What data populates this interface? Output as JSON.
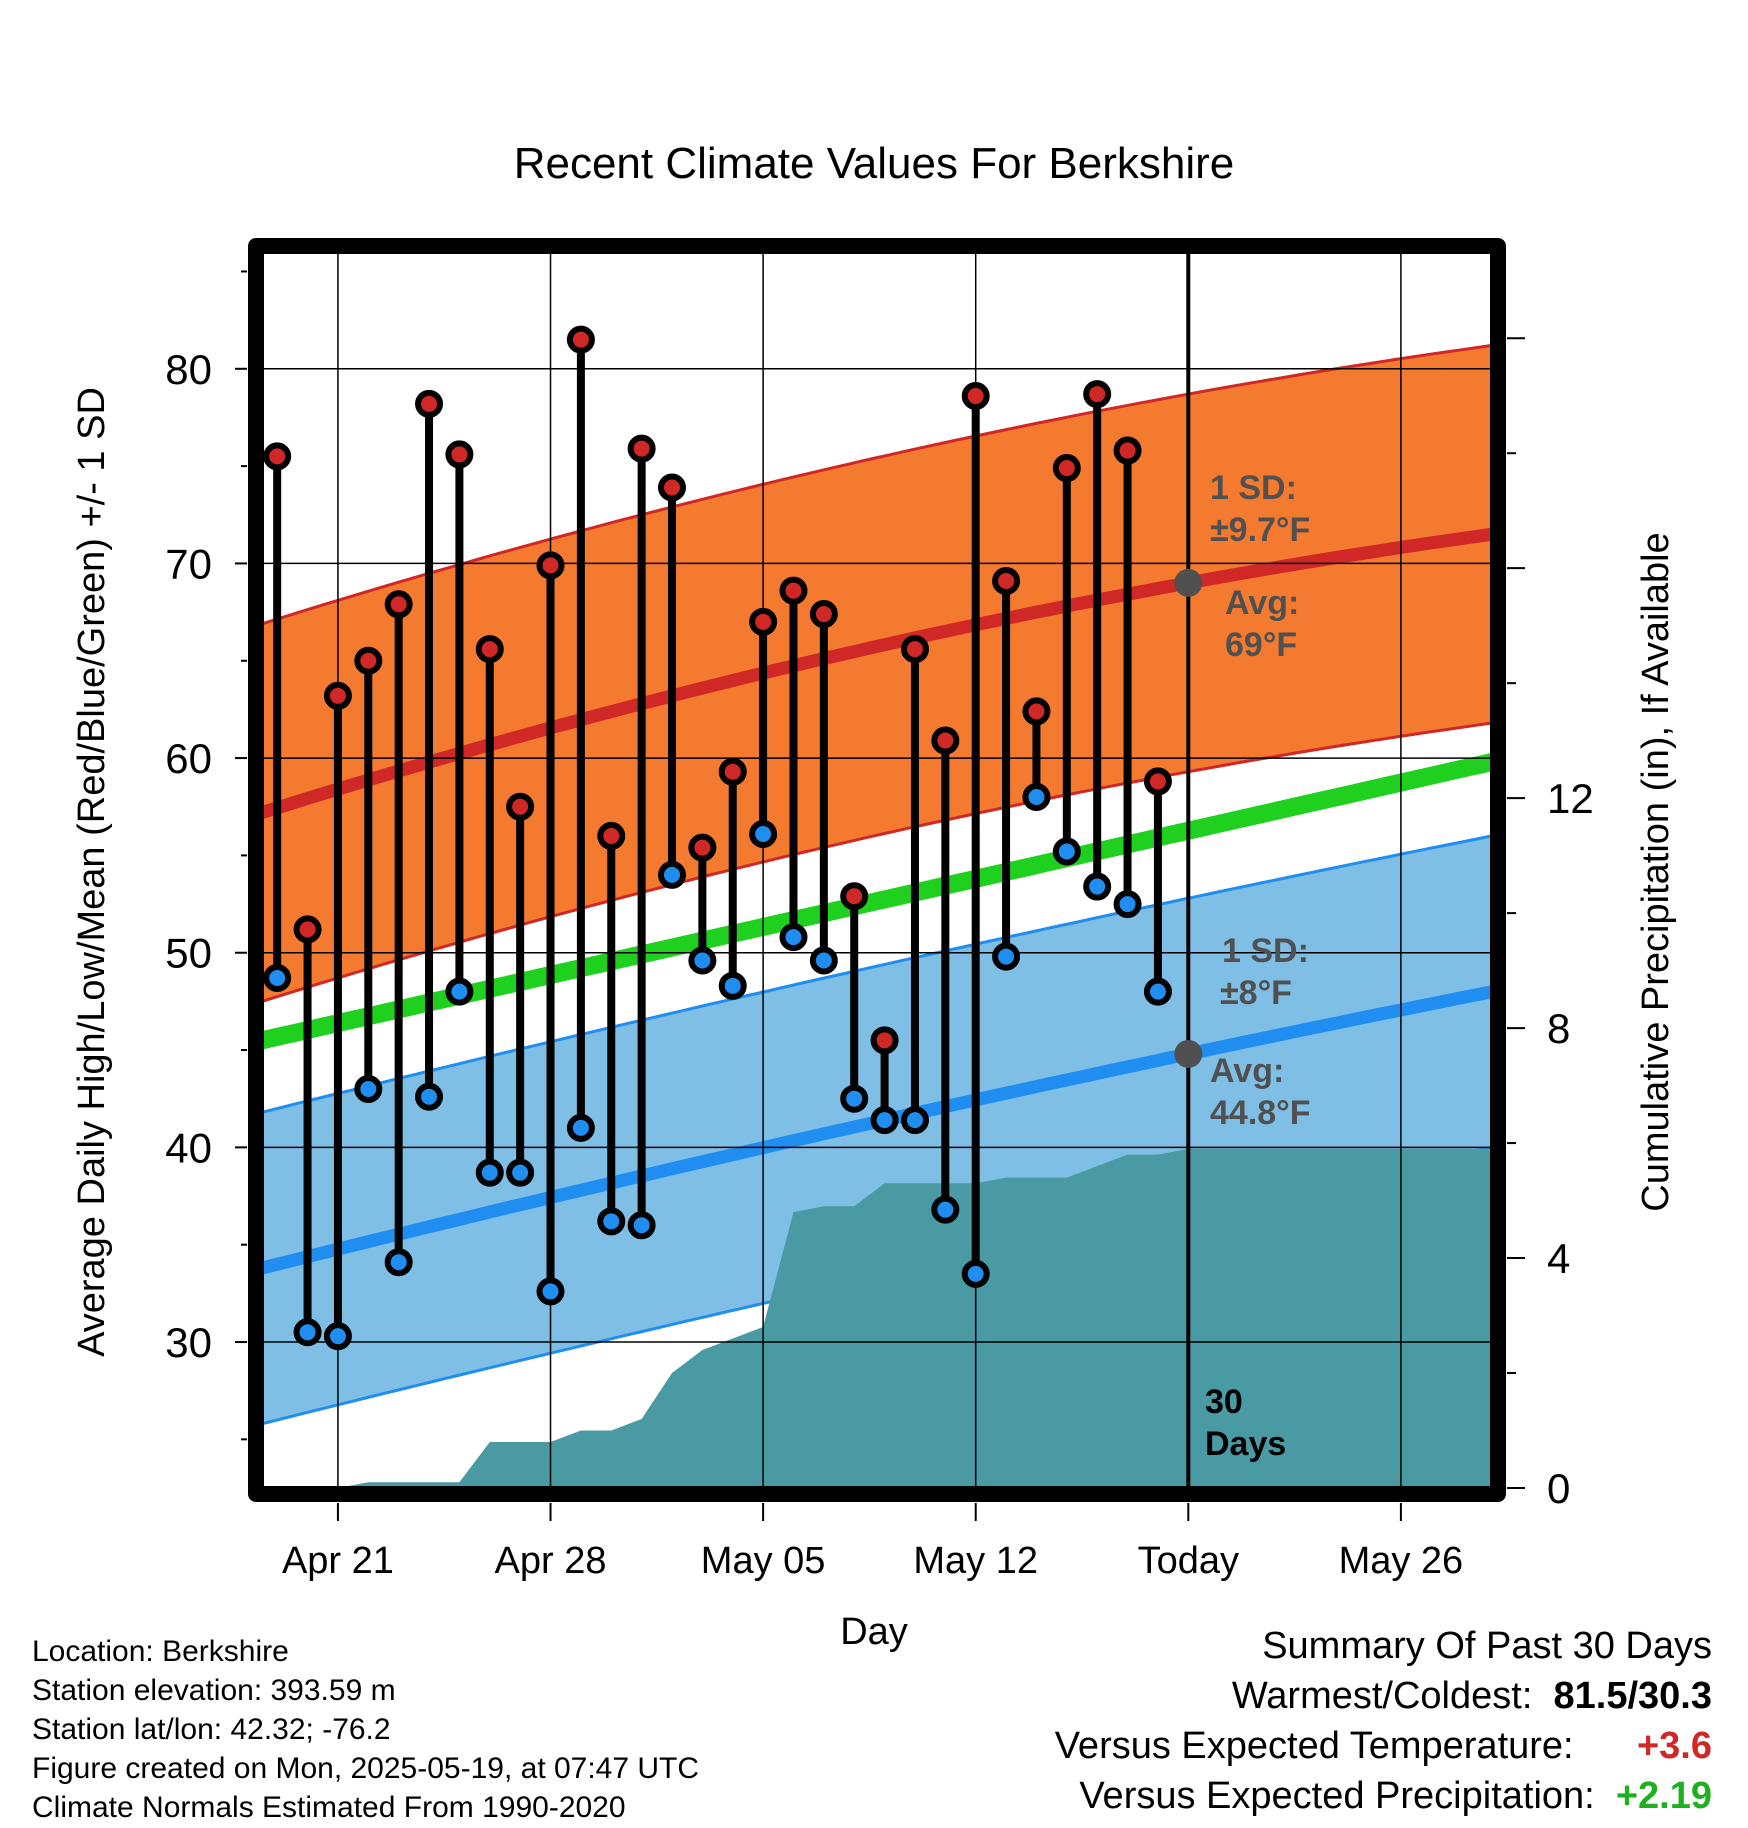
{
  "chart_data": {
    "type": "line",
    "title": "Recent Climate Values For Berkshire",
    "xlabel": "Day",
    "ylabel": "Average Daily High/Low/Mean (Red/Blue/Green) +/- 1 SD",
    "y2label": "Cumulative Precipitation (in), If Available",
    "ylim": [
      22.5,
      86
    ],
    "y2lim": [
      0,
      21.5
    ],
    "x_tick_labels": [
      "Apr 21",
      "Apr 28",
      "May 05",
      "May 12",
      "Today",
      "May 26"
    ],
    "y_ticks": [
      30,
      40,
      50,
      60,
      70,
      80
    ],
    "y2_ticks": [
      0,
      4,
      8,
      12
    ],
    "day_range": [
      -30.5,
      10
    ],
    "x_tick_days": [
      -28,
      -21,
      -14,
      -7,
      0,
      7
    ],
    "highs": [
      75.5,
      51.2,
      63.2,
      65.0,
      67.9,
      78.2,
      75.6,
      65.6,
      57.5,
      69.9,
      81.5,
      56.0,
      75.9,
      73.9,
      55.4,
      59.3,
      67.0,
      68.6,
      67.4,
      52.9,
      45.5,
      65.6,
      60.9,
      78.6,
      69.1,
      62.4,
      74.9,
      78.7,
      75.8,
      58.8
    ],
    "lows": [
      48.7,
      30.5,
      30.3,
      43.0,
      34.1,
      42.6,
      48.0,
      38.7,
      38.7,
      32.6,
      41.0,
      36.2,
      36.0,
      54.0,
      49.6,
      48.3,
      56.1,
      50.8,
      49.6,
      42.5,
      41.4,
      41.4,
      36.8,
      33.5,
      49.8,
      58.0,
      55.2,
      53.4,
      52.5,
      48.0
    ],
    "normal_high": {
      "start": 57.2,
      "today": 69.0,
      "end": 71.5,
      "sd": 9.7
    },
    "normal_low": {
      "start": 33.8,
      "today": 44.8,
      "end": 48.0,
      "sd": 8.0
    },
    "normal_mean": {
      "start": 45.5,
      "end": 59.8
    },
    "precip_cumulative": [
      0,
      0,
      0,
      0.1,
      0.1,
      0.1,
      0.1,
      0.8,
      0.8,
      0.8,
      1.0,
      1.0,
      1.2,
      2.0,
      2.4,
      2.6,
      2.8,
      4.8,
      4.9,
      4.9,
      5.3,
      5.3,
      5.3,
      5.3,
      5.4,
      5.4,
      5.4,
      5.6,
      5.8,
      5.8,
      5.9
    ],
    "annotations": {
      "high_sd": [
        "1 SD:",
        "±9.7°F"
      ],
      "high_avg": [
        "Avg:",
        "69°F"
      ],
      "low_sd": [
        "1 SD:",
        "±8°F"
      ],
      "low_avg": [
        "Avg:",
        "44.8°F"
      ],
      "window": [
        "30",
        "Days"
      ]
    },
    "colors": {
      "high_band": "#f47a2f",
      "high_line": "#d02727",
      "low_band": "#7fbfe6",
      "low_line": "#1f8ef0",
      "mean_line": "#1fd01f",
      "precip": "#4a9aa3",
      "high_dot": "#d02727",
      "low_dot": "#1f8ef0",
      "annotation": "#505050"
    },
    "grid": true
  },
  "info": {
    "location": "Location: Berkshire",
    "elevation": "Station elevation: 393.59 m",
    "latlon": "Station lat/lon: 42.32; -76.2",
    "created": "Figure created on Mon, 2025-05-19, at 07:47 UTC",
    "normals": "Climate Normals Estimated From 1990-2020"
  },
  "summary": {
    "title": "Summary Of Past 30 Days",
    "warm_label": "Warmest/Coldest:",
    "warm_value": "81.5/30.3",
    "temp_label": "Versus Expected Temperature:",
    "temp_value": "+3.6",
    "temp_color": "#d02727",
    "precip_label": "Versus Expected Precipitation:",
    "precip_value": "+2.19",
    "precip_color": "#1fb01f"
  }
}
